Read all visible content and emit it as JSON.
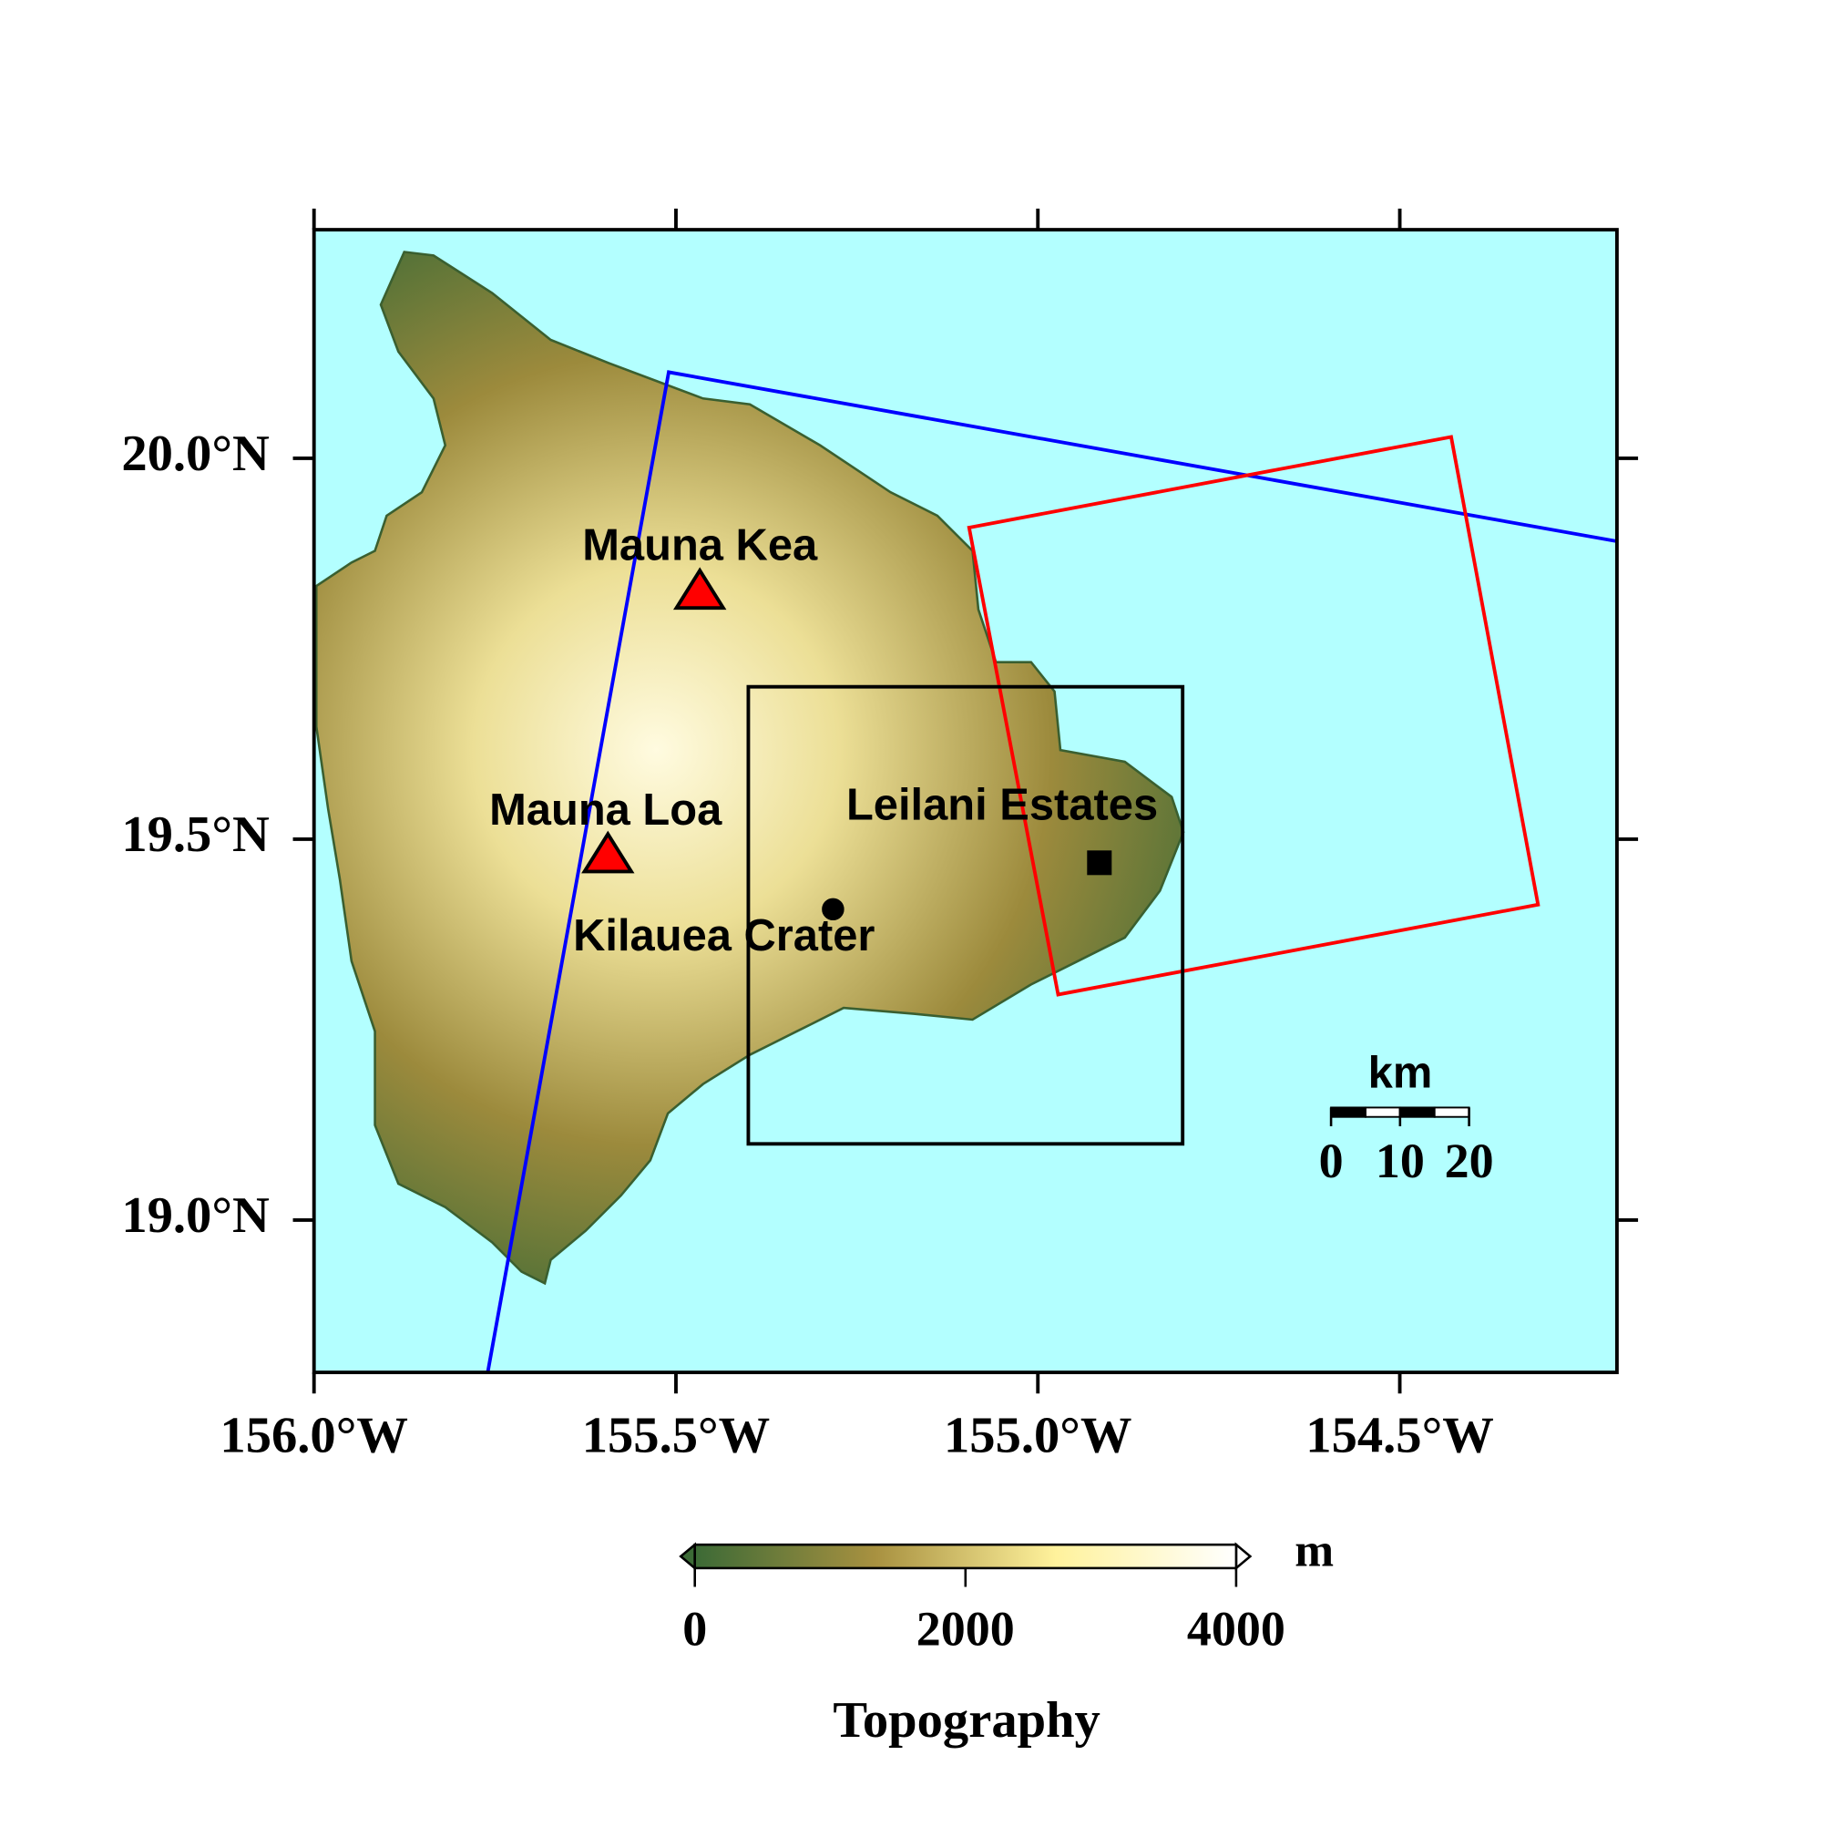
{
  "map": {
    "xlim": [
      -156.0,
      -154.2
    ],
    "ylim": [
      18.8,
      20.3
    ],
    "xticks": [
      {
        "value": -156.0,
        "label": "156.0°W"
      },
      {
        "value": -155.5,
        "label": "155.5°W"
      },
      {
        "value": -155.0,
        "label": "155.0°W"
      },
      {
        "value": -154.5,
        "label": "154.5°W"
      }
    ],
    "yticks": [
      {
        "value": 19.0,
        "label": "19.0°N"
      },
      {
        "value": 19.5,
        "label": "19.5°N"
      },
      {
        "value": 20.0,
        "label": "20.0°N"
      }
    ],
    "ocean_color": "#b3ffff",
    "frames": [
      {
        "color": "#0000ff",
        "lon": [
          -155.76,
          -155.51,
          -154.2
        ],
        "lat": [
          18.8,
          20.113,
          19.891
        ],
        "closed": false
      },
      {
        "color": "#ff0000",
        "lon": [
          -155.095,
          -154.429,
          -154.309,
          -154.972
        ],
        "lat": [
          19.909,
          20.028,
          19.414,
          19.296
        ],
        "closed": true
      },
      {
        "color": "#000000",
        "lon": [
          -155.4,
          -154.8,
          -154.8,
          -155.4
        ],
        "lat": [
          19.7,
          19.7,
          19.1,
          19.1
        ],
        "closed": true
      }
    ],
    "markers": [
      {
        "label": "Mauna Kea",
        "shape": "triangle",
        "color": "#ff0000",
        "lon": -155.467,
        "lat": 19.825
      },
      {
        "label": "Mauna Loa",
        "shape": "triangle",
        "color": "#ff0000",
        "lon": -155.594,
        "lat": 19.479
      },
      {
        "label": "Kilauea Crater",
        "shape": "circle",
        "color": "#000000",
        "lon": -155.283,
        "lat": 19.408
      },
      {
        "label": "Leilani Estates",
        "shape": "square",
        "color": "#000000",
        "lon": -154.915,
        "lat": 19.469
      }
    ]
  },
  "scale_bar": {
    "unit": "km",
    "ticks": [
      0,
      10,
      20
    ]
  },
  "colorbar": {
    "title": "Topography",
    "unit": "m",
    "lim": [
      0,
      4000
    ],
    "ticks": [
      0,
      2000,
      4000
    ],
    "colors": [
      "#3c6a36",
      "#a89140",
      "#fff29c",
      "#ffffff"
    ]
  }
}
